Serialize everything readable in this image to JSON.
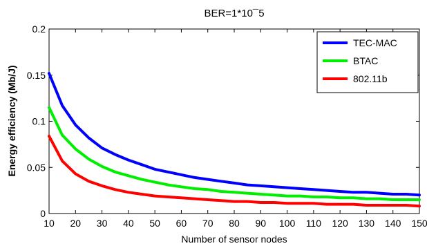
{
  "chart_data": {
    "type": "line",
    "title": "BER=1*10¯5",
    "xlabel": "Number of sensor nodes",
    "ylabel": "Energy efficiency (Mb/J)",
    "xlim": [
      10,
      150
    ],
    "ylim": [
      0,
      0.2
    ],
    "xticks": [
      10,
      20,
      30,
      40,
      50,
      60,
      70,
      80,
      90,
      100,
      110,
      120,
      130,
      140,
      150
    ],
    "yticks": [
      0,
      0.05,
      0.1,
      0.15,
      0.2
    ],
    "ytick_labels": [
      "0",
      "0.05",
      "0.1",
      "0.15",
      "0.2"
    ],
    "grid": false,
    "legend_position": "top-right",
    "x": [
      10,
      15,
      20,
      25,
      30,
      35,
      40,
      45,
      50,
      55,
      60,
      65,
      70,
      75,
      80,
      85,
      90,
      95,
      100,
      105,
      110,
      115,
      120,
      125,
      130,
      135,
      140,
      145,
      150
    ],
    "series": [
      {
        "name": "TEC-MAC",
        "color": "#0000ff",
        "values": [
          0.152,
          0.117,
          0.096,
          0.082,
          0.071,
          0.064,
          0.058,
          0.053,
          0.048,
          0.045,
          0.042,
          0.039,
          0.037,
          0.035,
          0.033,
          0.031,
          0.03,
          0.029,
          0.028,
          0.027,
          0.026,
          0.025,
          0.024,
          0.023,
          0.023,
          0.022,
          0.021,
          0.021,
          0.02
        ]
      },
      {
        "name": "BTAC",
        "color": "#00ee00",
        "values": [
          0.115,
          0.085,
          0.07,
          0.059,
          0.051,
          0.045,
          0.041,
          0.037,
          0.034,
          0.031,
          0.029,
          0.027,
          0.026,
          0.024,
          0.023,
          0.022,
          0.021,
          0.02,
          0.019,
          0.019,
          0.018,
          0.018,
          0.017,
          0.017,
          0.016,
          0.016,
          0.015,
          0.015,
          0.015
        ]
      },
      {
        "name": "802.11b",
        "color": "#ff0000",
        "values": [
          0.084,
          0.057,
          0.043,
          0.035,
          0.03,
          0.026,
          0.023,
          0.021,
          0.019,
          0.018,
          0.017,
          0.016,
          0.015,
          0.014,
          0.013,
          0.013,
          0.012,
          0.012,
          0.011,
          0.011,
          0.011,
          0.01,
          0.01,
          0.01,
          0.009,
          0.009,
          0.009,
          0.009,
          0.008
        ]
      }
    ]
  }
}
